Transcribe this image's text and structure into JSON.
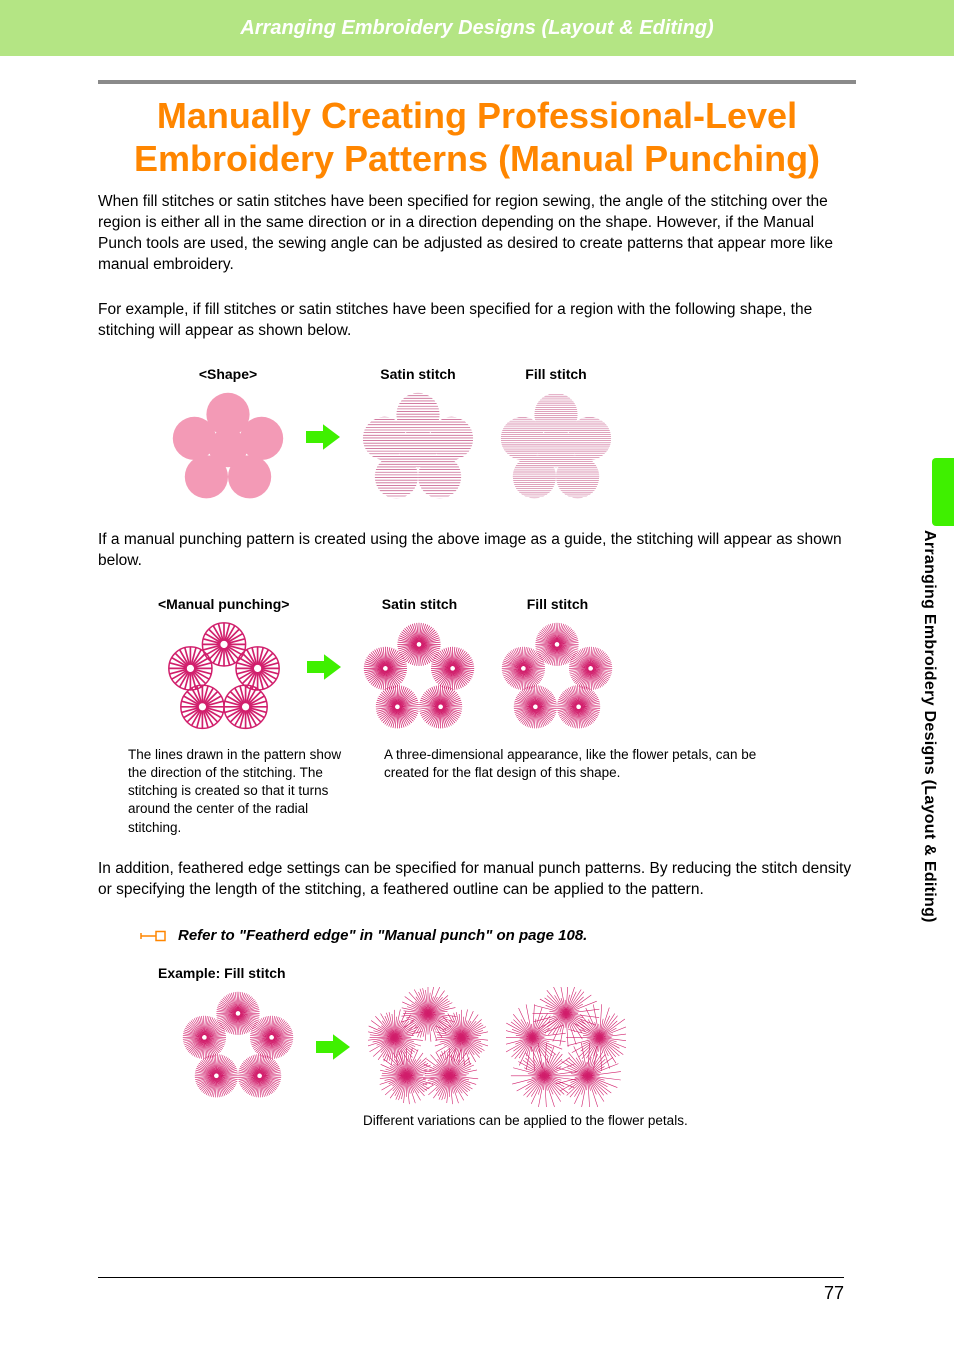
{
  "header": {
    "title": "Arranging Embroidery Designs (Layout & Editing)"
  },
  "page": {
    "title": "Manually Creating Professional-Level Embroidery Patterns (Manual Punching)",
    "intro": "When fill stitches or satin stitches have been specified for region sewing, the angle of the stitching over the region is either all in the same direction or in a direction depending on the shape. However, if the Manual Punch tools are used, the sewing angle can be adjusted as desired to create patterns that appear more like manual embroidery.",
    "para2": "For example, if fill stitches or satin stitches have been specified for a region with the following shape, the stitching will appear as shown below.",
    "para3": "If a manual punching pattern is created using the above image as a guide, the stitching will appear as shown below.",
    "para4": "In addition, feathered edge settings can be specified for manual punch patterns. By reducing the stitch density or specifying the length of the stitching, a feathered outline can be applied to the pattern.",
    "note": "Refer to \"Featherd edge\" in \"Manual punch\" on page 108.",
    "number": "77"
  },
  "fig1": {
    "shape_label": "<Shape>",
    "satin_label": "Satin stitch",
    "fill_label": "Fill stitch",
    "shape_fill": "#f39ab6",
    "shape_stroke": "none",
    "satin_color": "#cc6a94",
    "fill_color": "#cc6a94",
    "arrow_color": "#3ff000"
  },
  "fig2": {
    "label": "<Manual punching>",
    "satin_label": "Satin stitch",
    "fill_label": "Fill stitch",
    "stitch_color": "#d11f6c",
    "arrow_color": "#3ff000",
    "cap_left": "The lines drawn in the pattern show the direction of the stitching. The stitching is created so that it turns around the center of the radial stitching.",
    "cap_right": "A three-dimensional appearance, like the flower petals, can be created for the flat design of this shape."
  },
  "fig3": {
    "label": "Example: Fill stitch",
    "stitch_color": "#d11f6c",
    "arrow_color": "#3ff000",
    "caption": "Different variations can be applied to the flower petals."
  },
  "sidebar": {
    "text": "Arranging Embroidery Designs (Layout & Editing)"
  },
  "colors": {
    "header_bg": "#b4e584",
    "title": "#ff8600",
    "tab": "#3ff000",
    "rule": "#8a8a8a"
  }
}
